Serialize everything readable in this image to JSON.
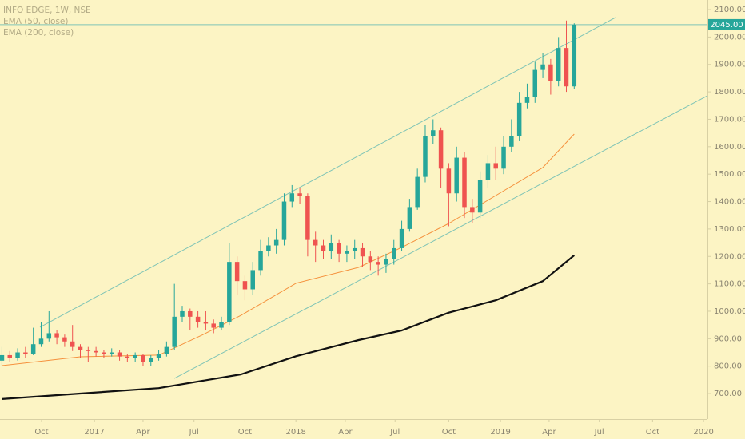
{
  "chart_data": {
    "type": "candlestick",
    "title": "INFO EDGE, 1W, NSE",
    "up_color": "#26a69a",
    "down_color": "#ef5350",
    "candles": {
      "x": [
        0,
        2,
        4,
        6,
        8,
        10,
        12,
        14,
        16,
        18,
        20,
        22,
        24,
        26,
        28,
        30,
        32,
        34,
        36,
        38,
        40,
        42,
        44,
        46,
        48,
        50,
        52,
        54,
        56,
        58,
        60,
        62,
        64,
        66,
        68,
        70,
        72,
        74,
        76,
        78,
        80,
        82,
        84,
        86,
        88,
        90,
        92,
        94,
        96,
        98,
        100,
        102,
        104,
        106,
        108,
        110,
        112,
        114,
        116,
        118,
        120,
        122,
        124,
        126,
        128,
        130,
        132,
        134,
        136,
        138,
        140,
        142,
        144,
        146
      ],
      "open": [
        820,
        840,
        830,
        850,
        845,
        880,
        900,
        920,
        905,
        890,
        870,
        860,
        855,
        850,
        845,
        850,
        835,
        830,
        840,
        815,
        830,
        845,
        870,
        980,
        1000,
        980,
        960,
        955,
        940,
        960,
        1180,
        1110,
        1080,
        1150,
        1220,
        1240,
        1260,
        1400,
        1430,
        1420,
        1260,
        1240,
        1220,
        1250,
        1210,
        1220,
        1230,
        1200,
        1180,
        1170,
        1190,
        1230,
        1300,
        1380,
        1490,
        1640,
        1660,
        1520,
        1430,
        1560,
        1380,
        1360,
        1480,
        1540,
        1520,
        1600,
        1640,
        1760,
        1780,
        1880,
        1900,
        1840,
        1960,
        1820
      ],
      "high": [
        870,
        855,
        865,
        870,
        940,
        960,
        1000,
        930,
        915,
        950,
        880,
        870,
        870,
        860,
        865,
        860,
        845,
        850,
        845,
        840,
        860,
        890,
        1100,
        1020,
        1010,
        1000,
        1000,
        970,
        980,
        1250,
        1200,
        1130,
        1180,
        1260,
        1270,
        1300,
        1430,
        1460,
        1450,
        1430,
        1290,
        1260,
        1280,
        1260,
        1240,
        1260,
        1250,
        1220,
        1200,
        1210,
        1260,
        1330,
        1410,
        1520,
        1680,
        1700,
        1670,
        1540,
        1600,
        1580,
        1410,
        1510,
        1570,
        1600,
        1640,
        1700,
        1800,
        1830,
        1910,
        1940,
        1920,
        2000,
        2060,
        2050
      ],
      "low": [
        800,
        815,
        820,
        830,
        840,
        870,
        890,
        880,
        870,
        855,
        830,
        815,
        835,
        830,
        835,
        820,
        815,
        815,
        800,
        800,
        820,
        835,
        860,
        960,
        930,
        940,
        930,
        920,
        930,
        950,
        1060,
        1040,
        1060,
        1130,
        1200,
        1210,
        1240,
        1380,
        1390,
        1200,
        1180,
        1190,
        1190,
        1180,
        1180,
        1190,
        1160,
        1150,
        1130,
        1140,
        1170,
        1220,
        1290,
        1370,
        1470,
        1610,
        1450,
        1310,
        1400,
        1340,
        1320,
        1340,
        1450,
        1480,
        1500,
        1580,
        1620,
        1740,
        1760,
        1850,
        1790,
        1820,
        1800,
        1810
      ],
      "close": [
        840,
        830,
        850,
        845,
        880,
        900,
        920,
        905,
        890,
        870,
        860,
        855,
        850,
        845,
        850,
        835,
        830,
        840,
        815,
        830,
        845,
        870,
        980,
        1000,
        980,
        960,
        955,
        940,
        960,
        1180,
        1110,
        1080,
        1150,
        1220,
        1240,
        1260,
        1400,
        1430,
        1420,
        1260,
        1240,
        1220,
        1250,
        1210,
        1220,
        1230,
        1200,
        1180,
        1170,
        1190,
        1230,
        1300,
        1380,
        1490,
        1640,
        1660,
        1520,
        1430,
        1560,
        1380,
        1360,
        1480,
        1540,
        1520,
        1600,
        1640,
        1760,
        1780,
        1880,
        1900,
        1840,
        1960,
        1820,
        2045
      ]
    },
    "series": [
      {
        "name": "EMA (50, close)",
        "color": "#f5923e",
        "width": 1,
        "x": [
          0,
          20,
          40,
          51,
          61,
          75,
          91,
          102,
          114,
          126,
          138,
          146
        ],
        "values": [
          802,
          834,
          840,
          913,
          985,
          1102,
          1160,
          1233,
          1320,
          1422,
          1524,
          1646
        ]
      },
      {
        "name": "EMA (200, close)",
        "color": "#111111",
        "width": 2.2,
        "x": [
          0,
          20,
          40,
          61,
          75,
          91,
          102,
          114,
          126,
          138,
          146
        ],
        "values": [
          680,
          700,
          720,
          770,
          836,
          895,
          930,
          995,
          1040,
          1110,
          1204
        ]
      }
    ],
    "trendlines": [
      {
        "color": "#7fc4b6",
        "x": [
          9.7,
          156.5
        ],
        "values": [
          942,
          2071
        ]
      },
      {
        "color": "#7fc4b6",
        "x": [
          44,
          180
        ],
        "values": [
          755,
          1786
        ]
      }
    ],
    "last_price": {
      "value": 2045,
      "label": "2045.00"
    },
    "xlim": [
      -0.5,
      180
    ],
    "ylim": [
      607,
      2135
    ],
    "xticks": [
      {
        "value": 10.1,
        "label": "Oct"
      },
      {
        "value": 23.6,
        "label": "2017"
      },
      {
        "value": 36,
        "label": "Apr"
      },
      {
        "value": 49,
        "label": "Jul"
      },
      {
        "value": 62,
        "label": "Oct"
      },
      {
        "value": 75,
        "label": "2018"
      },
      {
        "value": 87.6,
        "label": "Apr"
      },
      {
        "value": 100.3,
        "label": "Jul"
      },
      {
        "value": 114,
        "label": "Oct"
      },
      {
        "value": 127.2,
        "label": "2019"
      },
      {
        "value": 139.6,
        "label": "Apr"
      },
      {
        "value": 152.4,
        "label": "Jul"
      },
      {
        "value": 166,
        "label": "Oct"
      },
      {
        "value": 179,
        "label": "2020"
      }
    ],
    "yticks": [
      {
        "value": 700,
        "label": "700.00"
      },
      {
        "value": 800,
        "label": "800.00"
      },
      {
        "value": 900,
        "label": "900.00"
      },
      {
        "value": 1000,
        "label": "1000.00"
      },
      {
        "value": 1100,
        "label": "1100.00"
      },
      {
        "value": 1200,
        "label": "1200.00"
      },
      {
        "value": 1300,
        "label": "1300.00"
      },
      {
        "value": 1400,
        "label": "1400.00"
      },
      {
        "value": 1500,
        "label": "1500.00"
      },
      {
        "value": 1600,
        "label": "1600.00"
      },
      {
        "value": 1700,
        "label": "1700.00"
      },
      {
        "value": 1800,
        "label": "1800.00"
      },
      {
        "value": 1900,
        "label": "1900.00"
      },
      {
        "value": 2000,
        "label": "2000.00"
      },
      {
        "value": 2100,
        "label": "2100.00"
      }
    ],
    "grid": false
  }
}
